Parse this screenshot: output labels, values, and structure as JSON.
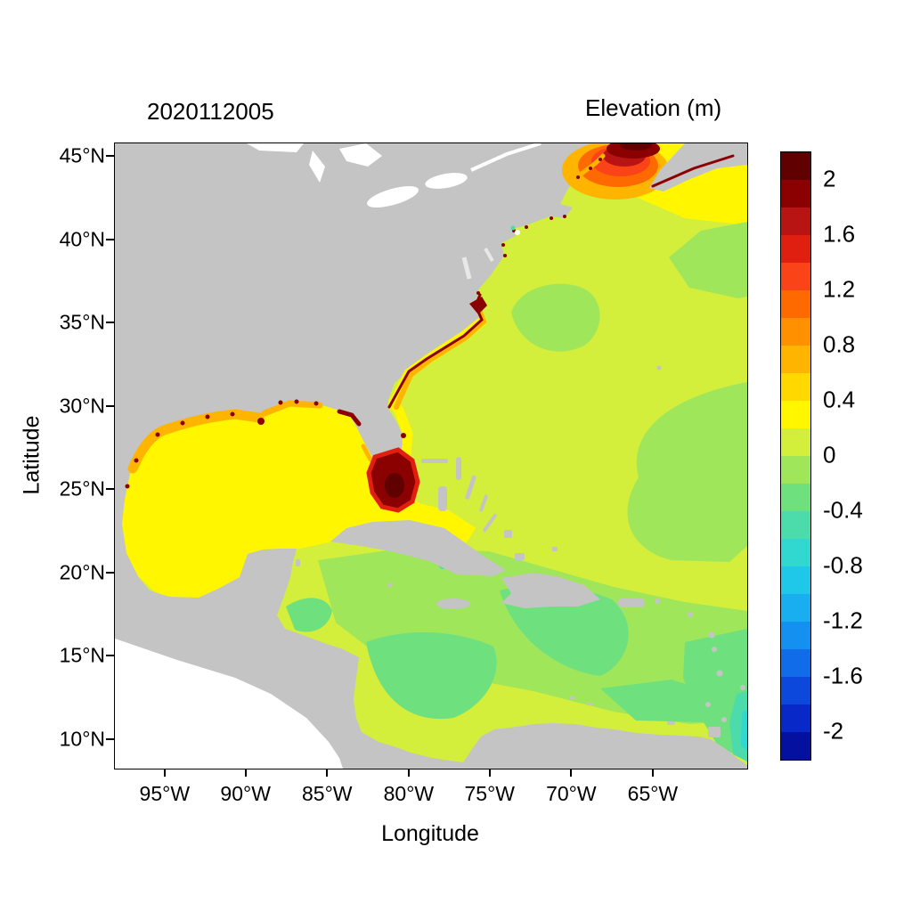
{
  "figure": {
    "timestamp": "2020112005",
    "legend_title": "Elevation (m)",
    "xlabel": "Longitude",
    "ylabel": "Latitude",
    "axes": {
      "x": {
        "ticks": [
          {
            "label": "95°W",
            "pct": 8.0
          },
          {
            "label": "90°W",
            "pct": 20.8
          },
          {
            "label": "85°W",
            "pct": 33.7
          },
          {
            "label": "80°W",
            "pct": 46.6
          },
          {
            "label": "75°W",
            "pct": 59.4
          },
          {
            "label": "70°W",
            "pct": 72.3
          },
          {
            "label": "65°W",
            "pct": 85.2
          }
        ]
      },
      "y": {
        "ticks": [
          {
            "label": "45°N",
            "pct": 2.1
          },
          {
            "label": "40°N",
            "pct": 15.5
          },
          {
            "label": "35°N",
            "pct": 28.8
          },
          {
            "label": "30°N",
            "pct": 42.1
          },
          {
            "label": "25°N",
            "pct": 55.4
          },
          {
            "label": "20°N",
            "pct": 68.8
          },
          {
            "label": "15°N",
            "pct": 82.1
          },
          {
            "label": "10°N",
            "pct": 95.4
          }
        ]
      }
    },
    "colorbar": {
      "colors": [
        "#600000",
        "#8b0000",
        "#b81414",
        "#e01f10",
        "#fb4318",
        "#ff6a00",
        "#ff9000",
        "#ffb400",
        "#ffd800",
        "#fff600",
        "#d4ee3c",
        "#9fe65a",
        "#6ee07e",
        "#4cdcab",
        "#30d8d0",
        "#1fc8e8",
        "#18aef0",
        "#1490f0",
        "#106ce8",
        "#0c48dc",
        "#0828c8",
        "#0410a0"
      ],
      "labels": [
        "2",
        "1.6",
        "1.2",
        "0.8",
        "0.4",
        "0",
        "-0.4",
        "-0.8",
        "-1.2",
        "-1.6",
        "-2"
      ]
    },
    "map_colors": {
      "land": "#c4c4c4",
      "out_of_domain": "#ffffff"
    }
  },
  "chart_data": {
    "type": "heatmap",
    "subtype": "geographic filled-contour field (ocean model elevation)",
    "title": "2020112005",
    "legend_title": "Elevation (m)",
    "xlabel": "Longitude",
    "ylabel": "Latitude",
    "x_tick_labels": [
      "95°W",
      "90°W",
      "85°W",
      "80°W",
      "75°W",
      "70°W",
      "65°W"
    ],
    "y_tick_labels": [
      "45°N",
      "40°N",
      "35°N",
      "30°N",
      "25°N",
      "20°N",
      "15°N",
      "10°N"
    ],
    "lon_range_deg_west": [
      98.1,
      59.3
    ],
    "lat_range_deg_north": [
      8.3,
      45.8
    ],
    "grid": false,
    "legend_position": "right vertical colorbar",
    "colorbar": {
      "min": -2.2,
      "max": 2.2,
      "band_interval": 0.2,
      "label_interval": 0.4,
      "tick_labels": [
        "2",
        "1.6",
        "1.2",
        "0.8",
        "0.4",
        "0",
        "-0.4",
        "-0.8",
        "-1.2",
        "-1.6",
        "-2"
      ],
      "band_colors_top_to_bottom": [
        "#600000",
        "#8b0000",
        "#b81414",
        "#e01f10",
        "#fb4318",
        "#ff6a00",
        "#ff9000",
        "#ffb400",
        "#ffd800",
        "#fff600",
        "#d4ee3c",
        "#9fe65a",
        "#6ee07e",
        "#4cdcab",
        "#30d8d0",
        "#1fc8e8",
        "#18aef0",
        "#1490f0",
        "#106ce8",
        "#0c48dc",
        "#0828c8",
        "#0410a0"
      ]
    },
    "regions": [
      {
        "name": "Gulf of Mexico basin",
        "approx_value_m": 0.3
      },
      {
        "name": "Open western Atlantic",
        "approx_value_m": 0.1
      },
      {
        "name": "Atlantic mesoscale patches",
        "approx_value_m": -0.1
      },
      {
        "name": "Caribbean Sea interior",
        "approx_value_m": -0.2
      },
      {
        "name": "Bay of Fundy / Gulf of Maine maximum (~44N 67W)",
        "approx_value_m": 2.2
      },
      {
        "name": "Southwest Florida / Everglades coastal maximum",
        "approx_value_m": 2.2
      },
      {
        "name": "Southeast US coastal band (GA to Cape Hatteras)",
        "approx_value_m": 0.8
      },
      {
        "name": "Texas-Louisiana shelf coastal band",
        "approx_value_m": 0.6
      },
      {
        "name": "Apalachee Bay coastal strip",
        "approx_value_m": 2.0
      },
      {
        "name": "Southeast corner near Trinidad (right edge)",
        "approx_value_m": -0.6
      },
      {
        "name": "Land mask",
        "approx_value_m": null,
        "color": "#c4c4c4"
      },
      {
        "name": "Outside model domain (Pacific, lower-left)",
        "approx_value_m": null,
        "color": "#ffffff"
      }
    ]
  }
}
